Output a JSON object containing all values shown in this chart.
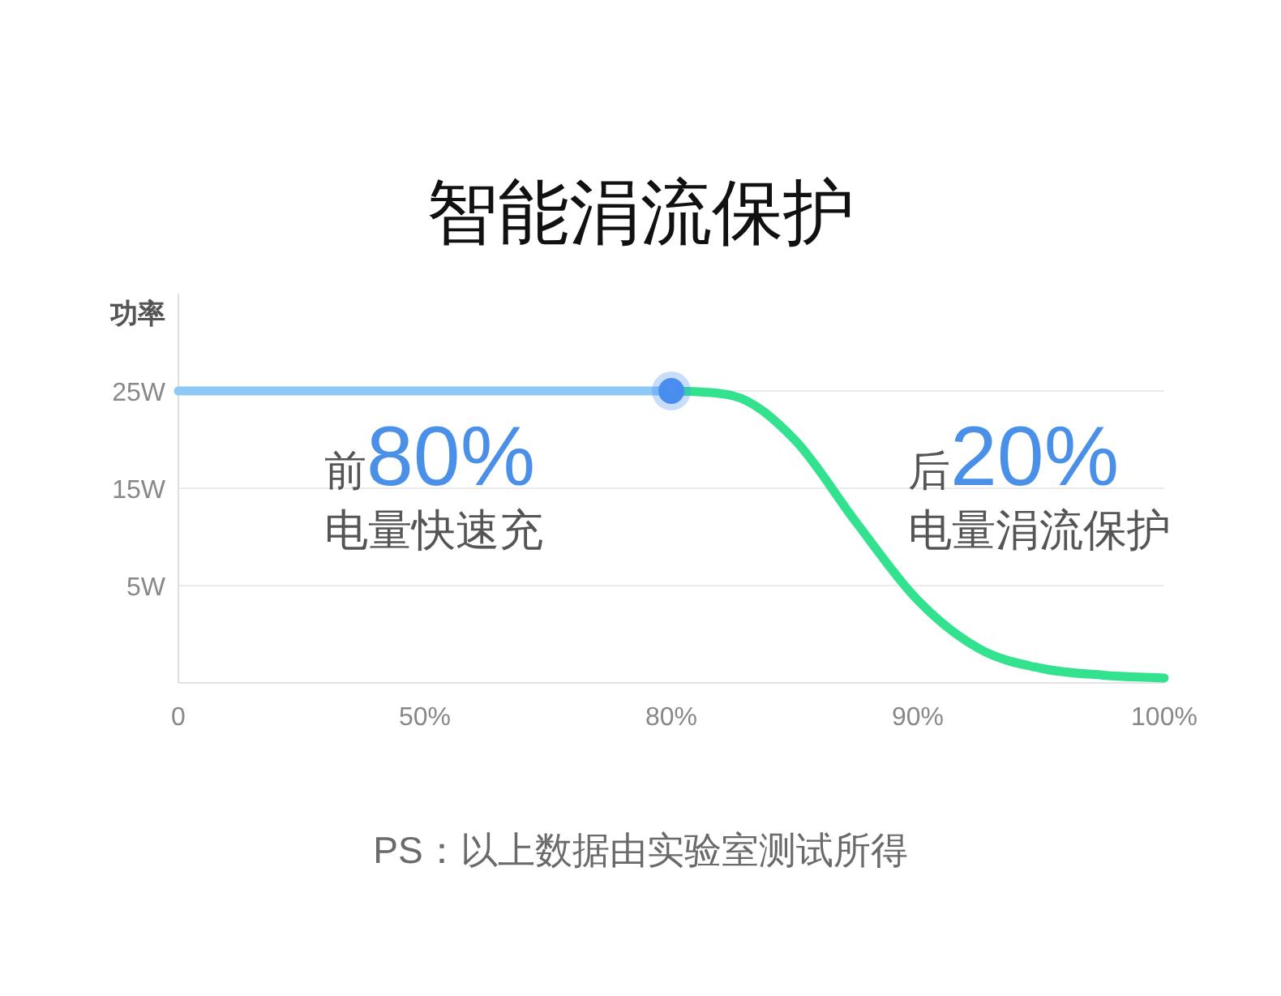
{
  "chart_data": {
    "type": "line",
    "title": "智能涓流保护",
    "ylabel": "功率",
    "categories": [
      "0",
      null,
      null,
      null,
      "50%",
      null,
      null,
      null,
      "80%",
      null,
      null,
      null,
      "90%",
      null,
      null,
      null,
      "100%"
    ],
    "ylim": [
      -5,
      35
    ],
    "yticks": [
      {
        "value": 5,
        "label": "5W"
      },
      {
        "value": 15,
        "label": "15W"
      },
      {
        "value": 25,
        "label": "25W"
      }
    ],
    "grid": "y",
    "series": [
      {
        "color": "#8ec8f7",
        "values": [
          25,
          25,
          25,
          25,
          25,
          25,
          25,
          25,
          25,
          null,
          null,
          null,
          null,
          null,
          null,
          null,
          null
        ]
      },
      {
        "color": "#33e28e",
        "values": [
          null,
          null,
          null,
          null,
          null,
          null,
          null,
          null,
          25,
          24.5,
          20,
          11.5,
          3.5,
          -1.5,
          -3.5,
          -4.2,
          -4.5
        ]
      },
      {
        "type": "scatter",
        "marker": "circle",
        "color": "#4a8ef0",
        "values": [
          null,
          null,
          null,
          null,
          null,
          null,
          null,
          null,
          25,
          null,
          null,
          null,
          null,
          null,
          null,
          null,
          null
        ]
      }
    ],
    "annotations": [
      "前80%",
      "电量快速充",
      "后20%",
      "电量涓流保护",
      "PS：以上数据由实验室测试所得"
    ]
  }
}
